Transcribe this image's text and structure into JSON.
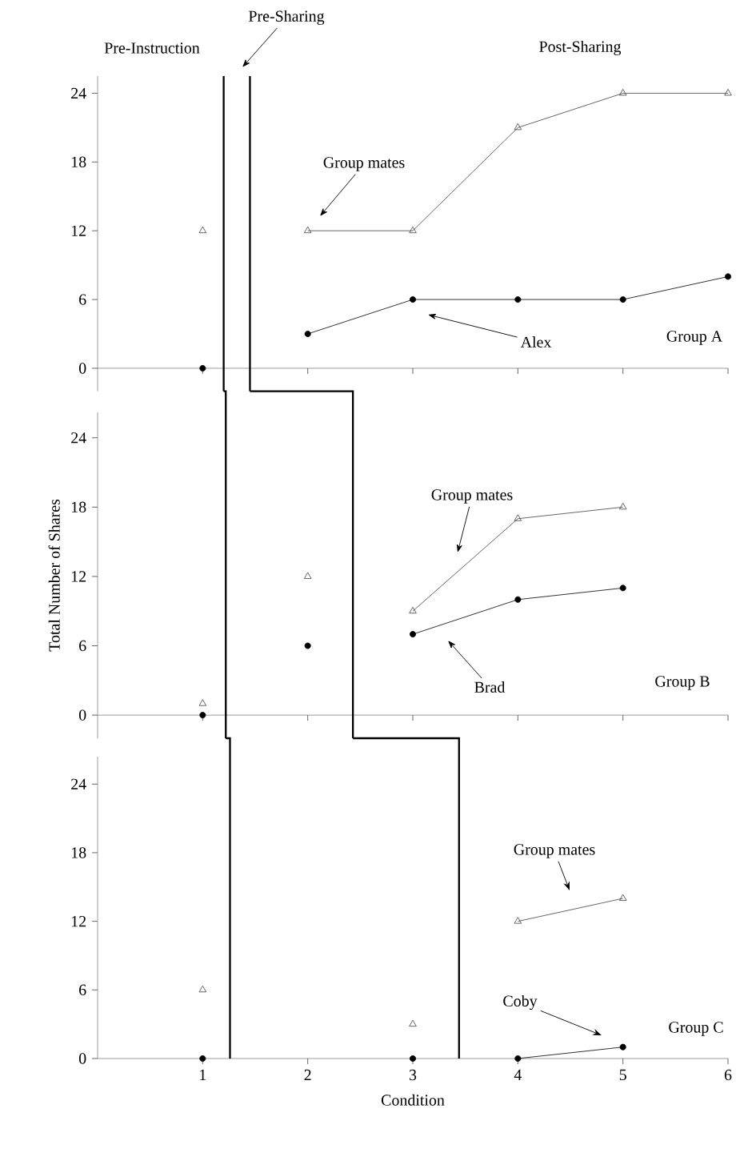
{
  "chart_data": [
    {
      "type": "line",
      "xlim": [
        0,
        6
      ],
      "ylim": [
        -2,
        25.5
      ],
      "xticks": [
        1,
        2,
        3,
        4,
        5,
        6
      ],
      "yticks": [
        0,
        6,
        12,
        18,
        24
      ],
      "tick_labels": "y",
      "ref_lines": [
        {
          "axis": "x",
          "value": 1.2
        },
        {
          "axis": "x",
          "value": 1.45
        }
      ],
      "annotations": [
        "Pre-Instruction",
        "Pre-Sharing",
        "Post-Sharing",
        "Group mates",
        "Alex",
        "Group A"
      ],
      "series": [
        {
          "type": "scatter",
          "marker": "triangle",
          "color": "#404040",
          "x": [
            1
          ],
          "values": [
            12
          ]
        },
        {
          "type": "scatter",
          "marker": "circle",
          "color": "#000000",
          "x": [
            1
          ],
          "values": [
            0
          ]
        },
        {
          "marker": "triangle",
          "color": "#404040",
          "x": [
            2,
            3,
            4,
            5,
            6
          ],
          "values": [
            12,
            12,
            21,
            24,
            24
          ]
        },
        {
          "marker": "circle",
          "color": "#000000",
          "x": [
            2,
            3,
            4,
            5,
            6
          ],
          "values": [
            3,
            6,
            6,
            6,
            8
          ]
        }
      ]
    },
    {
      "type": "line",
      "ylabel": "Total Number of Shares",
      "xlim": [
        0,
        6
      ],
      "ylim": [
        -2,
        26.2
      ],
      "xticks": [
        1,
        2,
        3,
        4,
        5,
        6
      ],
      "yticks": [
        0,
        6,
        12,
        18,
        24
      ],
      "tick_labels": "y",
      "ref_lines": [
        {
          "axis": "x",
          "value": 1.22
        },
        {
          "axis": "x",
          "value": 2.43
        }
      ],
      "annotations": [
        "Group mates",
        "Brad",
        "Group B"
      ],
      "series": [
        {
          "type": "scatter",
          "marker": "triangle",
          "color": "#404040",
          "x": [
            1,
            2
          ],
          "values": [
            1,
            12
          ]
        },
        {
          "type": "scatter",
          "marker": "circle",
          "color": "#000000",
          "x": [
            1,
            2
          ],
          "values": [
            0,
            6
          ]
        },
        {
          "marker": "triangle",
          "color": "#404040",
          "x": [
            3,
            4,
            5
          ],
          "values": [
            9,
            17,
            18
          ]
        },
        {
          "marker": "circle",
          "color": "#000000",
          "x": [
            3,
            4,
            5
          ],
          "values": [
            7,
            10,
            11
          ]
        }
      ]
    },
    {
      "type": "line",
      "xlabel": "Condition",
      "ylim": [
        0,
        26.4
      ],
      "xlim": [
        0,
        6
      ],
      "xticks": [
        1,
        2,
        3,
        4,
        5,
        6
      ],
      "yticks": [
        0,
        6,
        12,
        18,
        24
      ],
      "ref_lines": [
        {
          "axis": "x",
          "value": 1.26
        },
        {
          "axis": "x",
          "value": 3.44
        }
      ],
      "annotations": [
        "Group mates",
        "Coby",
        "Group C"
      ],
      "series": [
        {
          "type": "scatter",
          "marker": "triangle",
          "color": "#404040",
          "x": [
            1,
            3
          ],
          "values": [
            6,
            3
          ]
        },
        {
          "type": "scatter",
          "marker": "circle",
          "color": "#000000",
          "x": [
            1,
            3
          ],
          "values": [
            0,
            0
          ]
        },
        {
          "marker": "triangle",
          "color": "#404040",
          "x": [
            4,
            5
          ],
          "values": [
            12,
            14
          ]
        },
        {
          "marker": "circle",
          "color": "#000000",
          "x": [
            4,
            5
          ],
          "values": [
            0,
            1
          ]
        }
      ]
    }
  ]
}
